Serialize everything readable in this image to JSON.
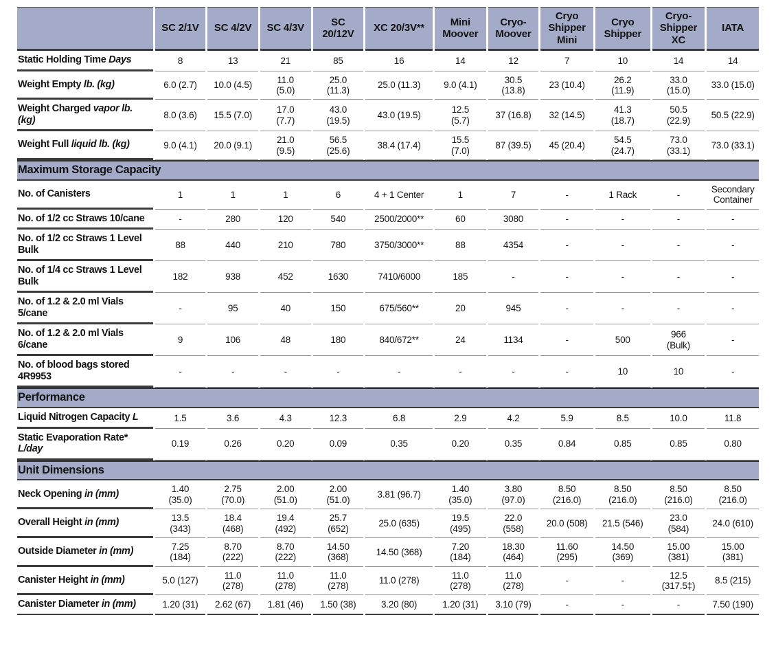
{
  "colors": {
    "band_bg": "#a3abc9",
    "border_dark": "#3b3b3b",
    "border_light": "#8f8f8f"
  },
  "table": {
    "columns": [
      "SC 2/1V",
      "SC 4/2V",
      "SC 4/3V",
      "SC\n20/12V",
      "XC 20/3V**",
      "Mini\nMoover",
      "Cryo-\nMoover",
      "Cryo\nShipper\nMini",
      "Cryo\nShipper",
      "Cryo-\nShipper\nXC",
      "IATA"
    ],
    "rows": [
      {
        "type": "data",
        "label": {
          "text": "Static Holding Time ",
          "italic": "Days"
        },
        "values": [
          "8",
          "13",
          "21",
          "85",
          "16",
          "14",
          "12",
          "7",
          "10",
          "14",
          "14"
        ]
      },
      {
        "type": "data",
        "label": {
          "text": "Weight Empty ",
          "italic": "lb. (kg)"
        },
        "values": [
          "6.0 (2.7)",
          "10.0 (4.5)",
          "11.0\n(5.0)",
          "25.0\n(11.3)",
          "25.0 (11.3)",
          "9.0 (4.1)",
          "30.5\n(13.8)",
          "23 (10.4)",
          "26.2\n(11.9)",
          "33.0\n(15.0)",
          "33.0 (15.0)"
        ]
      },
      {
        "type": "data",
        "label": {
          "text": "Weight Charged ",
          "italic": "vapor lb. (kg)"
        },
        "values": [
          "8.0 (3.6)",
          "15.5 (7.0)",
          "17.0\n(7.7)",
          "43.0\n(19.5)",
          "43.0 (19.5)",
          "12.5\n(5.7)",
          "37 (16.8)",
          "32 (14.5)",
          "41.3\n(18.7)",
          "50.5\n(22.9)",
          "50.5 (22.9)"
        ]
      },
      {
        "type": "data",
        "label": {
          "text": "Weight Full ",
          "italic": "liquid lb. (kg)"
        },
        "values": [
          "9.0 (4.1)",
          "20.0 (9.1)",
          "21.0\n(9.5)",
          "56.5\n(25.6)",
          "38.4 (17.4)",
          "15.5\n(7.0)",
          "87 (39.5)",
          "45 (20.4)",
          "54.5\n(24.7)",
          "73.0\n(33.1)",
          "73.0 (33.1)"
        ]
      },
      {
        "type": "section",
        "label": {
          "text": "Maximum Storage Capacity",
          "italic": ""
        }
      },
      {
        "type": "data",
        "label": {
          "text": "No. of Canisters",
          "italic": ""
        },
        "values": [
          "1",
          "1",
          "1",
          "6",
          "4 + 1 Center",
          "1",
          "7",
          "-",
          "1 Rack",
          "-",
          "Secondary\nContainer"
        ]
      },
      {
        "type": "data",
        "label": {
          "text": "No. of 1/2 cc Straws 10/cane",
          "italic": ""
        },
        "values": [
          "-",
          "280",
          "120",
          "540",
          "2500/2000**",
          "60",
          "3080",
          "-",
          "-",
          "-",
          "-"
        ]
      },
      {
        "type": "data",
        "label": {
          "text": "No. of 1/2 cc Straws 1 Level Bulk",
          "italic": ""
        },
        "values": [
          "88",
          "440",
          "210",
          "780",
          "3750/3000**",
          "88",
          "4354",
          "-",
          "-",
          "-",
          "-"
        ]
      },
      {
        "type": "data",
        "label": {
          "text": "No. of 1/4 cc Straws 1 Level Bulk",
          "italic": ""
        },
        "values": [
          "182",
          "938",
          "452",
          "1630",
          "7410/6000",
          "185",
          "-",
          "-",
          "-",
          "-",
          "-"
        ]
      },
      {
        "type": "data",
        "label": {
          "text": "No. of 1.2 & 2.0 ml Vials 5/cane",
          "italic": ""
        },
        "values": [
          "-",
          "95",
          "40",
          "150",
          "675/560**",
          "20",
          "945",
          "-",
          "-",
          "-",
          "-"
        ]
      },
      {
        "type": "data",
        "label": {
          "text": "No. of 1.2 & 2.0 ml Vials 6/cane",
          "italic": ""
        },
        "values": [
          "9",
          "106",
          "48",
          "180",
          "840/672**",
          "24",
          "1134",
          "-",
          "500",
          "966\n(Bulk)",
          "-"
        ]
      },
      {
        "type": "data",
        "label": {
          "text": "No. of blood bags stored 4R9953",
          "italic": ""
        },
        "values": [
          "-",
          "-",
          "-",
          "-",
          "-",
          "-",
          "-",
          "-",
          "10",
          "10",
          "-"
        ]
      },
      {
        "type": "section",
        "label": {
          "text": "Performance",
          "italic": ""
        }
      },
      {
        "type": "data",
        "label": {
          "text": "Liquid Nitrogen Capacity ",
          "italic": "L"
        },
        "values": [
          "1.5",
          "3.6",
          "4.3",
          "12.3",
          "6.8",
          "2.9",
          "4.2",
          "5.9",
          "8.5",
          "10.0",
          "11.8"
        ]
      },
      {
        "type": "data",
        "label": {
          "text": "Static Evaporation Rate* ",
          "italic": "L/day"
        },
        "values": [
          "0.19",
          "0.26",
          "0.20",
          "0.09",
          "0.35",
          "0.20",
          "0.35",
          "0.84",
          "0.85",
          "0.85",
          "0.80"
        ]
      },
      {
        "type": "section",
        "label": {
          "text": "Unit Dimensions",
          "italic": ""
        }
      },
      {
        "type": "data",
        "label": {
          "text": "Neck Opening ",
          "italic": "in (mm)"
        },
        "values": [
          "1.40\n(35.0)",
          "2.75\n(70.0)",
          "2.00\n(51.0)",
          "2.00\n(51.0)",
          "3.81 (96.7)",
          "1.40\n(35.0)",
          "3.80\n(97.0)",
          "8.50\n(216.0)",
          "8.50\n(216.0)",
          "8.50\n(216.0)",
          "8.50\n(216.0)"
        ]
      },
      {
        "type": "data",
        "label": {
          "text": "Overall Height ",
          "italic": "in (mm)"
        },
        "values": [
          "13.5\n(343)",
          "18.4\n(468)",
          "19.4\n(492)",
          "25.7\n(652)",
          "25.0 (635)",
          "19.5\n(495)",
          "22.0\n(558)",
          "20.0 (508)",
          "21.5 (546)",
          "23.0\n(584)",
          "24.0 (610)"
        ]
      },
      {
        "type": "data",
        "label": {
          "text": "Outside Diameter ",
          "italic": "in (mm)"
        },
        "values": [
          "7.25\n(184)",
          "8.70\n(222)",
          "8.70\n(222)",
          "14.50\n(368)",
          "14.50 (368)",
          "7.20\n(184)",
          "18.30\n(464)",
          "11.60\n(295)",
          "14.50\n(369)",
          "15.00\n(381)",
          "15.00\n(381)"
        ]
      },
      {
        "type": "data",
        "label": {
          "text": "Canister Height ",
          "italic": "in (mm)"
        },
        "values": [
          "5.0 (127)",
          "11.0\n(278)",
          "11.0\n(278)",
          "11.0\n(278)",
          "11.0 (278)",
          "11.0\n(278)",
          "11.0\n(278)",
          "-",
          "-",
          "12.5\n(317.5‡)",
          "8.5 (215)"
        ]
      },
      {
        "type": "data",
        "label": {
          "text": "Canister Diameter ",
          "italic": "in (mm)"
        },
        "values": [
          "1.20 (31)",
          "2.62 (67)",
          "1.81 (46)",
          "1.50 (38)",
          "3.20 (80)",
          "1.20 (31)",
          "3.10 (79)",
          "-",
          "-",
          "-",
          "7.50 (190)"
        ]
      }
    ]
  }
}
